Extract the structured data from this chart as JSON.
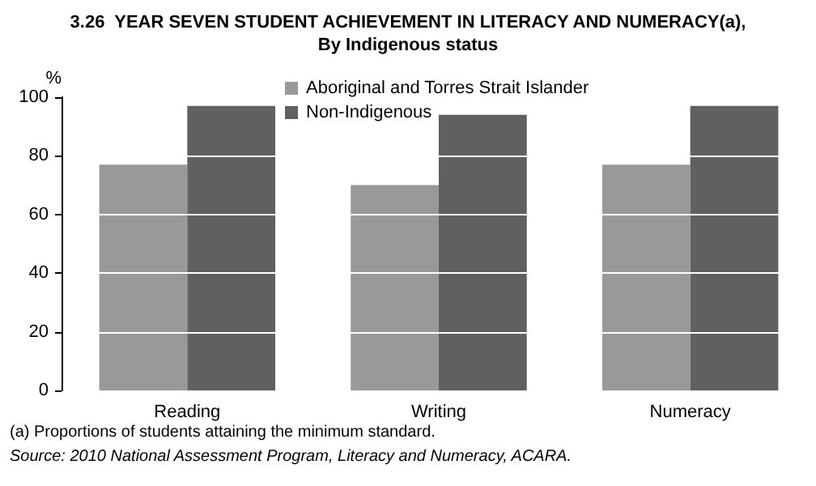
{
  "chart_data": {
    "type": "bar",
    "title": "3.26  YEAR SEVEN STUDENT ACHIEVEMENT IN LITERACY AND NUMERACY(a),\nBy Indigenous status",
    "ylabel": "%",
    "categories": [
      "Reading",
      "Writing",
      "Numeracy"
    ],
    "series": [
      {
        "name": "Aboriginal and Torres Strait Islander",
        "color": "#999999",
        "values": [
          77,
          70,
          77
        ]
      },
      {
        "name": "Non-Indigenous",
        "color": "#606060",
        "values": [
          97,
          94,
          97
        ]
      }
    ],
    "ylim": [
      0,
      100
    ],
    "yticks": [
      0,
      20,
      40,
      60,
      80,
      100
    ],
    "grid": "y",
    "legend": "top",
    "annotations": [
      "(a) Proportions of students attaining the minimum standard.",
      "Source: 2010 National Assessment Program, Literacy and Numeracy, ACARA."
    ]
  }
}
